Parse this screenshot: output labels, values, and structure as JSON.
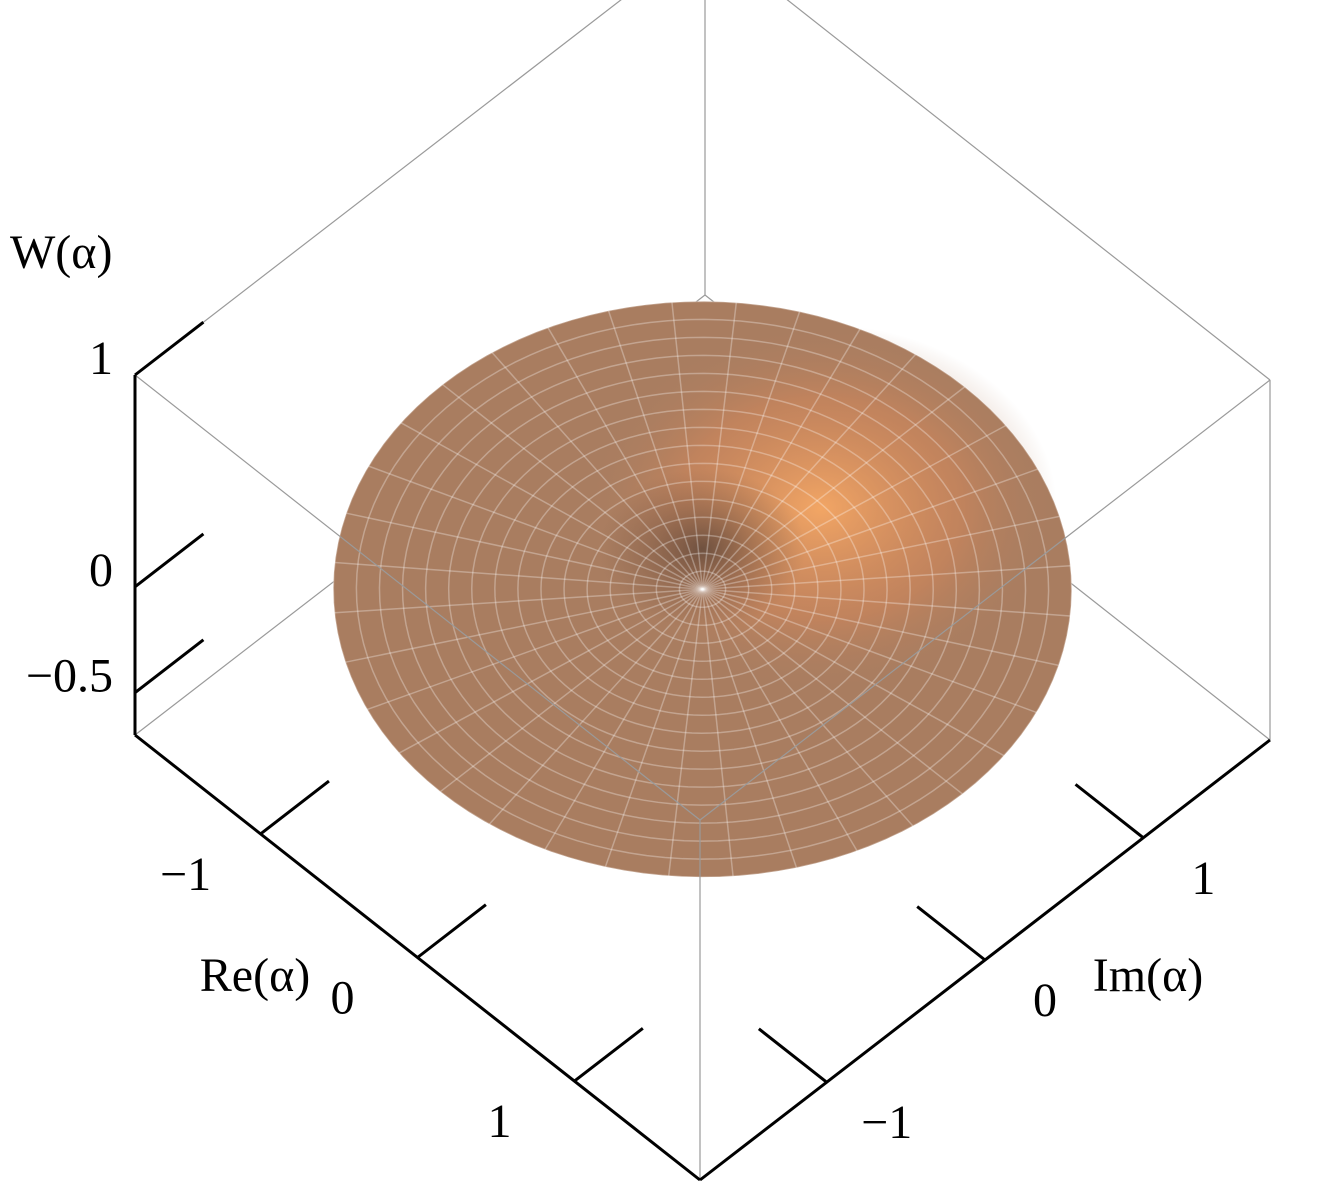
{
  "chart_data": {
    "type": "surface3d",
    "x_label": "Re(α)",
    "y_label": "Im(α)",
    "z_label": "W(α)",
    "xlim": [
      -1.8,
      1.8
    ],
    "ylim": [
      -1.8,
      1.8
    ],
    "zlim": [
      -0.7,
      1
    ],
    "xticks": [
      {
        "value": -1,
        "label": "−1"
      },
      0,
      1
    ],
    "yticks": [
      {
        "value": -1,
        "label": "−1"
      },
      0,
      1
    ],
    "zticks": [
      {
        "value": -0.5,
        "label": "−0.5"
      },
      0,
      1
    ],
    "color": "#a97d60"
  }
}
